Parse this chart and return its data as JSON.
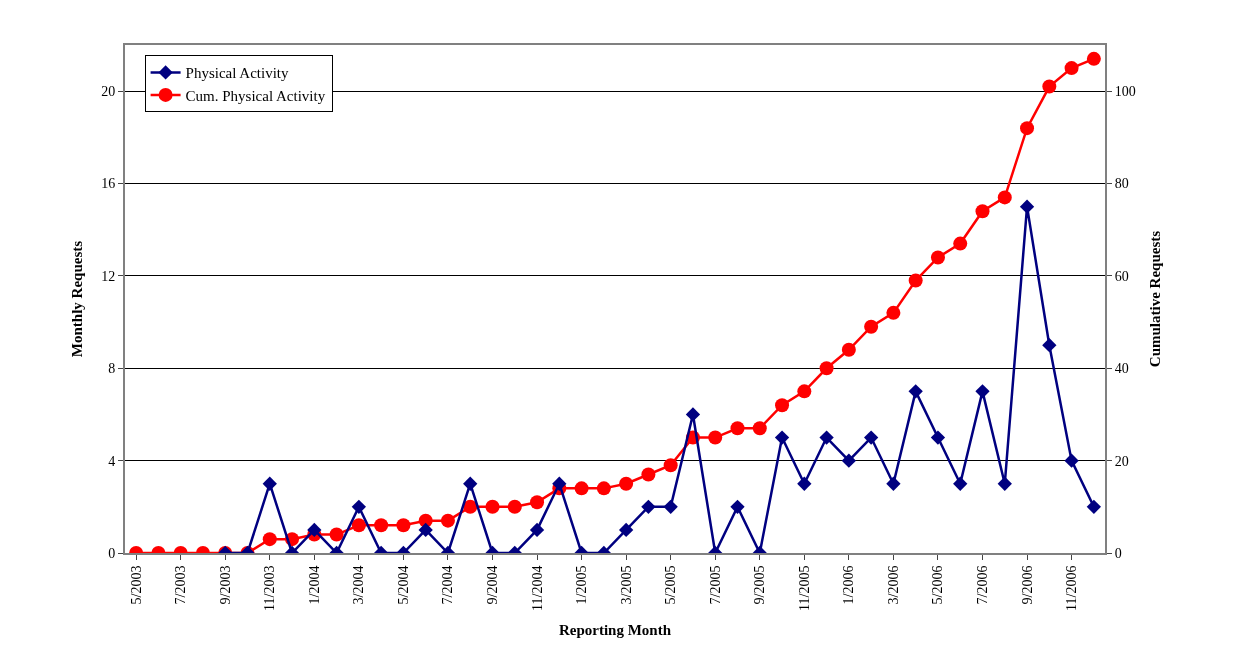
{
  "chart_data": {
    "type": "line",
    "xlabel": "Reporting Month",
    "ylabel": "Monthly Requests",
    "y2label": "Cumulative Requests",
    "categories": [
      "5/2003",
      null,
      "7/2003",
      null,
      "9/2003",
      null,
      "11/2003",
      null,
      "1/2004",
      null,
      "3/2004",
      null,
      "5/2004",
      null,
      "7/2004",
      null,
      "9/2004",
      null,
      "11/2004",
      null,
      "1/2005",
      null,
      "3/2005",
      null,
      "5/2005",
      null,
      "7/2005",
      null,
      "9/2005",
      null,
      "11/2005",
      null,
      "1/2006",
      null,
      "3/2006",
      null,
      "5/2006",
      null,
      "7/2006",
      null,
      "9/2006",
      null,
      "11/2006",
      null
    ],
    "series": [
      {
        "name": "Physical Activity",
        "color": "#000080",
        "marker": "diamond",
        "values": [
          null,
          null,
          null,
          null,
          0,
          0,
          3,
          0,
          1,
          0,
          2,
          0,
          0,
          1,
          0,
          3,
          0,
          0,
          1,
          3,
          0,
          0,
          1,
          2,
          2,
          6,
          0,
          2,
          0,
          5,
          3,
          5,
          4,
          5,
          3,
          7,
          5,
          3,
          7,
          3,
          15,
          9,
          4,
          2
        ]
      },
      {
        "name": "Cum. Physical Activity",
        "color": "#ff0000",
        "marker": "circle",
        "axis": "y2",
        "values": [
          0,
          0,
          0,
          0,
          0,
          0,
          3,
          3,
          4,
          4,
          6,
          6,
          6,
          7,
          7,
          10,
          10,
          10,
          11,
          14,
          14,
          14,
          15,
          17,
          19,
          25,
          25,
          27,
          27,
          32,
          35,
          40,
          44,
          49,
          52,
          59,
          64,
          67,
          74,
          77,
          92,
          101,
          105,
          107
        ]
      }
    ],
    "ylim": [
      0,
      22
    ],
    "yticks": [
      0,
      4,
      8,
      12,
      16,
      20
    ],
    "y2lim": [
      0,
      110
    ],
    "y2ticks": [
      0,
      20,
      40,
      60,
      80,
      100
    ],
    "grid": "y",
    "legend": "top left",
    "line_style": "solid"
  }
}
